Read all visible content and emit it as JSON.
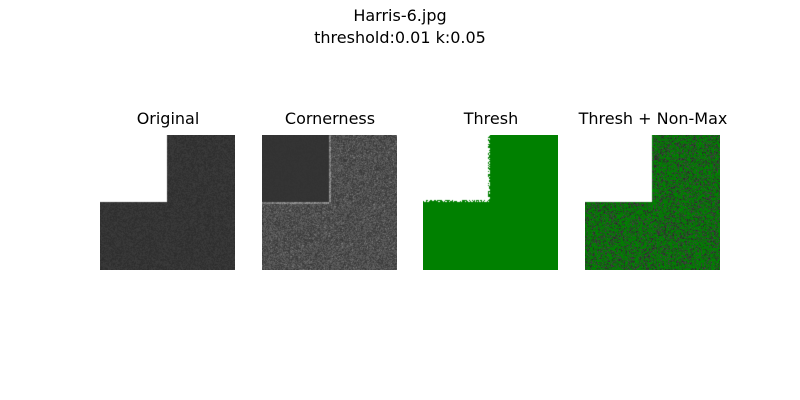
{
  "figure": {
    "suptitle_line1": "Harris-6.jpg",
    "suptitle_line2": "threshold:0.01 k:0.05"
  },
  "panels": [
    {
      "title": "Original"
    },
    {
      "title": "Cornerness"
    },
    {
      "title": "Thresh"
    },
    {
      "title": "Thresh + Non-Max"
    }
  ],
  "colors": {
    "background": "#ffffff",
    "dark_region": "#333333",
    "threshold_green": "#008000",
    "nonmax_green": "#107a10"
  }
}
